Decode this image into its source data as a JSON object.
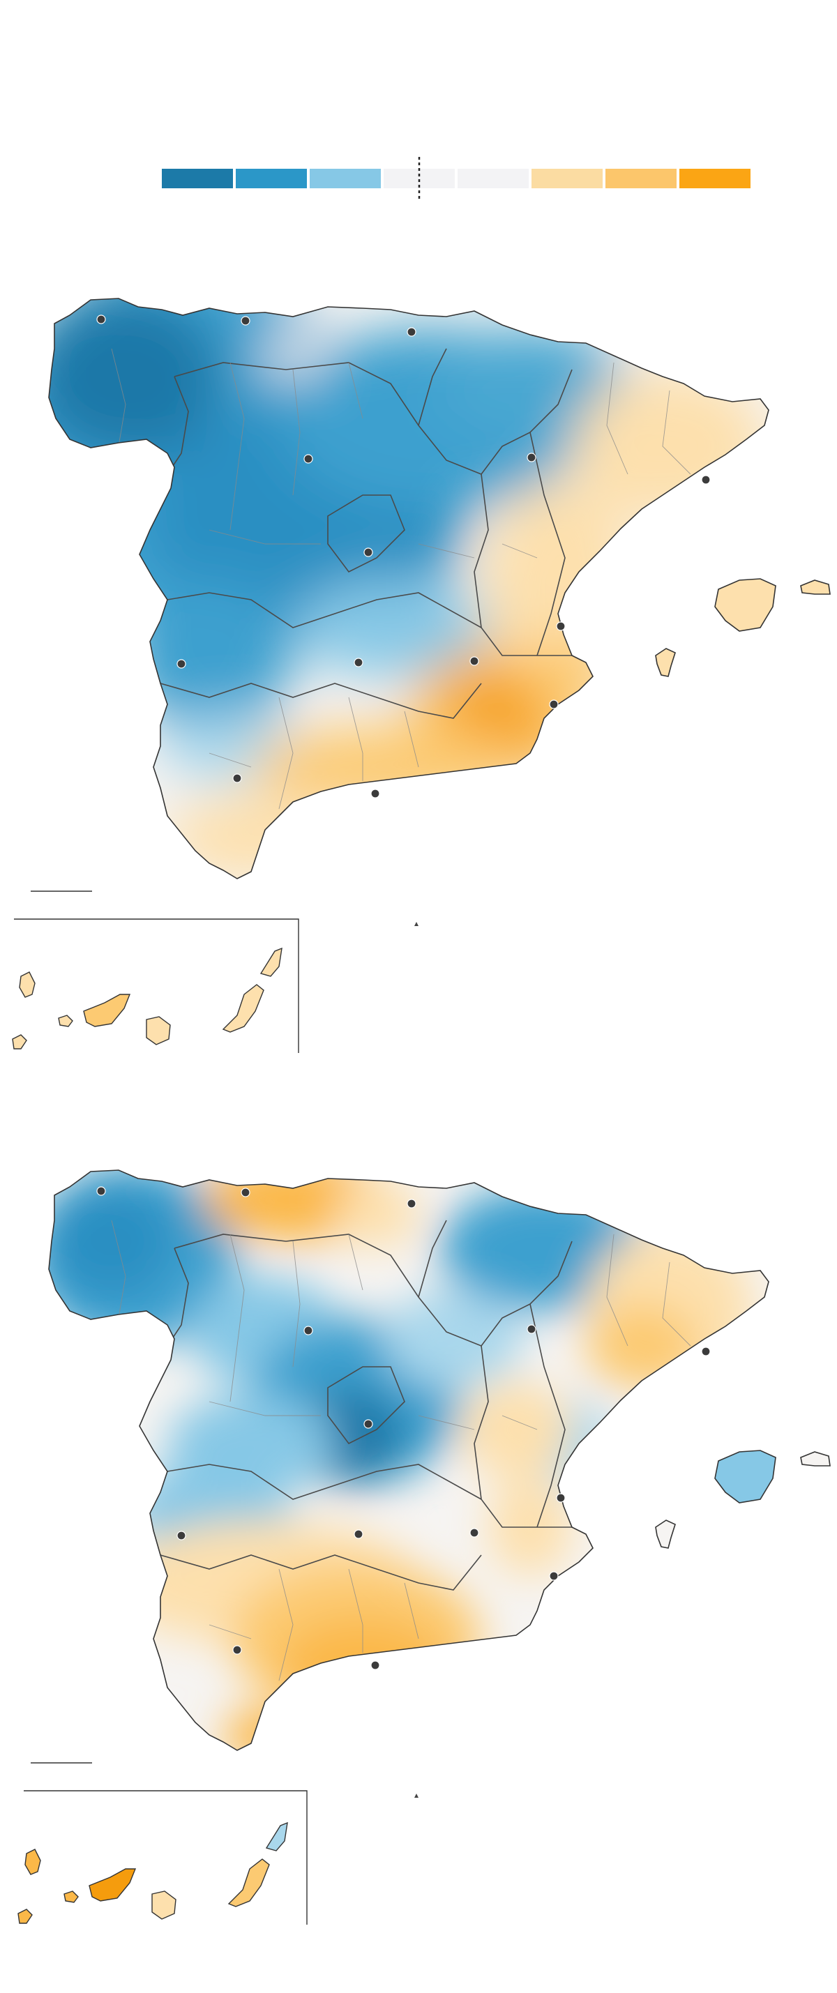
{
  "legend": {
    "swatches": [
      {
        "color": "#1c7aa8",
        "name": "much-wetter"
      },
      {
        "color": "#2b97c8",
        "name": "wetter"
      },
      {
        "color": "#86c8e6",
        "name": "slightly-wetter"
      },
      {
        "color": "#f3f3f5",
        "name": "normal-low"
      },
      {
        "color": "#f3f3f5",
        "name": "normal-high"
      },
      {
        "color": "#fbdca2",
        "name": "slightly-drier"
      },
      {
        "color": "#fcc66b",
        "name": "drier"
      },
      {
        "color": "#fba514",
        "name": "much-drier"
      }
    ]
  },
  "maps": [
    {
      "id": "map-1",
      "pattern": "northwest-wet-southeast-dry"
    },
    {
      "id": "map-2",
      "pattern": "central-wet-south-dry"
    }
  ],
  "colors": {
    "blue_dark": "#1a78a8",
    "blue": "#3da0cf",
    "blue_light": "#a9d7ec",
    "neutral": "#f6f4f2",
    "orange_light": "#fde0ad",
    "orange": "#fbb848",
    "orange_dark": "#f59c0d"
  }
}
